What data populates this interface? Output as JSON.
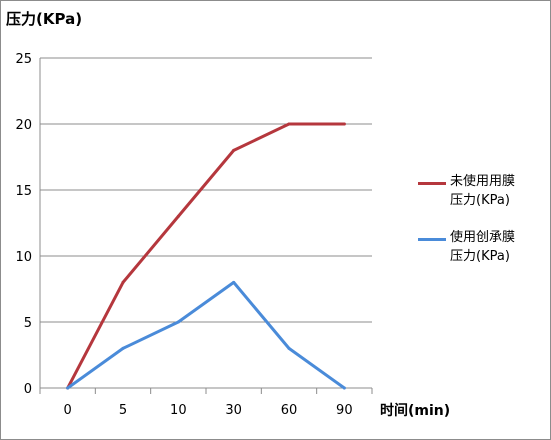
{
  "chart_data": {
    "type": "line",
    "title": "",
    "ylabel": "压力(KPa)",
    "xlabel": "时间(min)",
    "categories": [
      "0",
      "5",
      "10",
      "30",
      "60",
      "90"
    ],
    "ylim": [
      0,
      25
    ],
    "yticks": [
      0,
      5,
      10,
      15,
      20,
      25
    ],
    "grid": true,
    "legend_position": "right",
    "series": [
      {
        "name": "未使用用膜\n压力(KPa)",
        "color": "#b5373d",
        "values": [
          0,
          8,
          13,
          18,
          20,
          20
        ]
      },
      {
        "name": "使用创承膜\n压力(KPa)",
        "color": "#4a8bd9",
        "values": [
          0,
          3,
          5,
          8,
          3,
          0
        ]
      }
    ]
  }
}
